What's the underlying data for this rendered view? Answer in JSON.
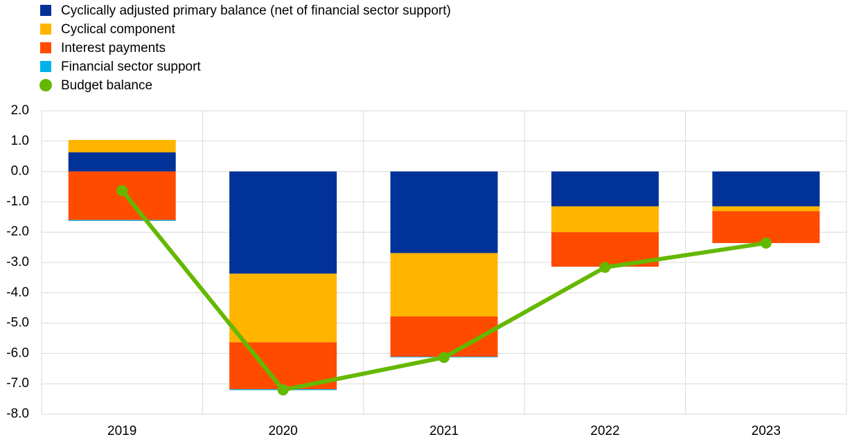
{
  "chart_data": {
    "type": "bar",
    "stacked": true,
    "categories": [
      "2019",
      "2020",
      "2021",
      "2022",
      "2023"
    ],
    "series": [
      {
        "name": "Cyclically adjusted primary balance (net of financial sector support)",
        "color": "#003299",
        "values": [
          0.63,
          -3.37,
          -2.69,
          -1.15,
          -1.15
        ]
      },
      {
        "name": "Cyclical component",
        "color": "#ffb400",
        "values": [
          0.41,
          -2.26,
          -2.09,
          -0.85,
          -0.16
        ]
      },
      {
        "name": "Interest payments",
        "color": "#ff4b00",
        "values": [
          -1.6,
          -1.55,
          -1.33,
          -1.14,
          -1.05
        ]
      },
      {
        "name": "Financial sector support",
        "color": "#00b1ea",
        "values": [
          -0.03,
          -0.03,
          -0.02,
          0,
          0
        ]
      },
      {
        "name": "Budget balance",
        "color": "#65b800",
        "type": "line",
        "values": [
          -0.63,
          -7.2,
          -6.13,
          -3.16,
          -2.36
        ]
      }
    ],
    "ylim": [
      -8,
      2
    ],
    "yticks": [
      {
        "value": -8,
        "label": "-8.0"
      },
      {
        "value": -7,
        "label": "-7.0"
      },
      {
        "value": -6,
        "label": "-6.0"
      },
      {
        "value": -5,
        "label": "-5.0"
      },
      {
        "value": -4,
        "label": "-4.0"
      },
      {
        "value": -3,
        "label": "-3.0"
      },
      {
        "value": -2,
        "label": "-2.0"
      },
      {
        "value": -1,
        "label": "-1.0"
      },
      {
        "value": 0,
        "label": "0.0"
      },
      {
        "value": 1,
        "label": "1.0"
      },
      {
        "value": 2,
        "label": "2.0"
      }
    ],
    "grid": true
  }
}
